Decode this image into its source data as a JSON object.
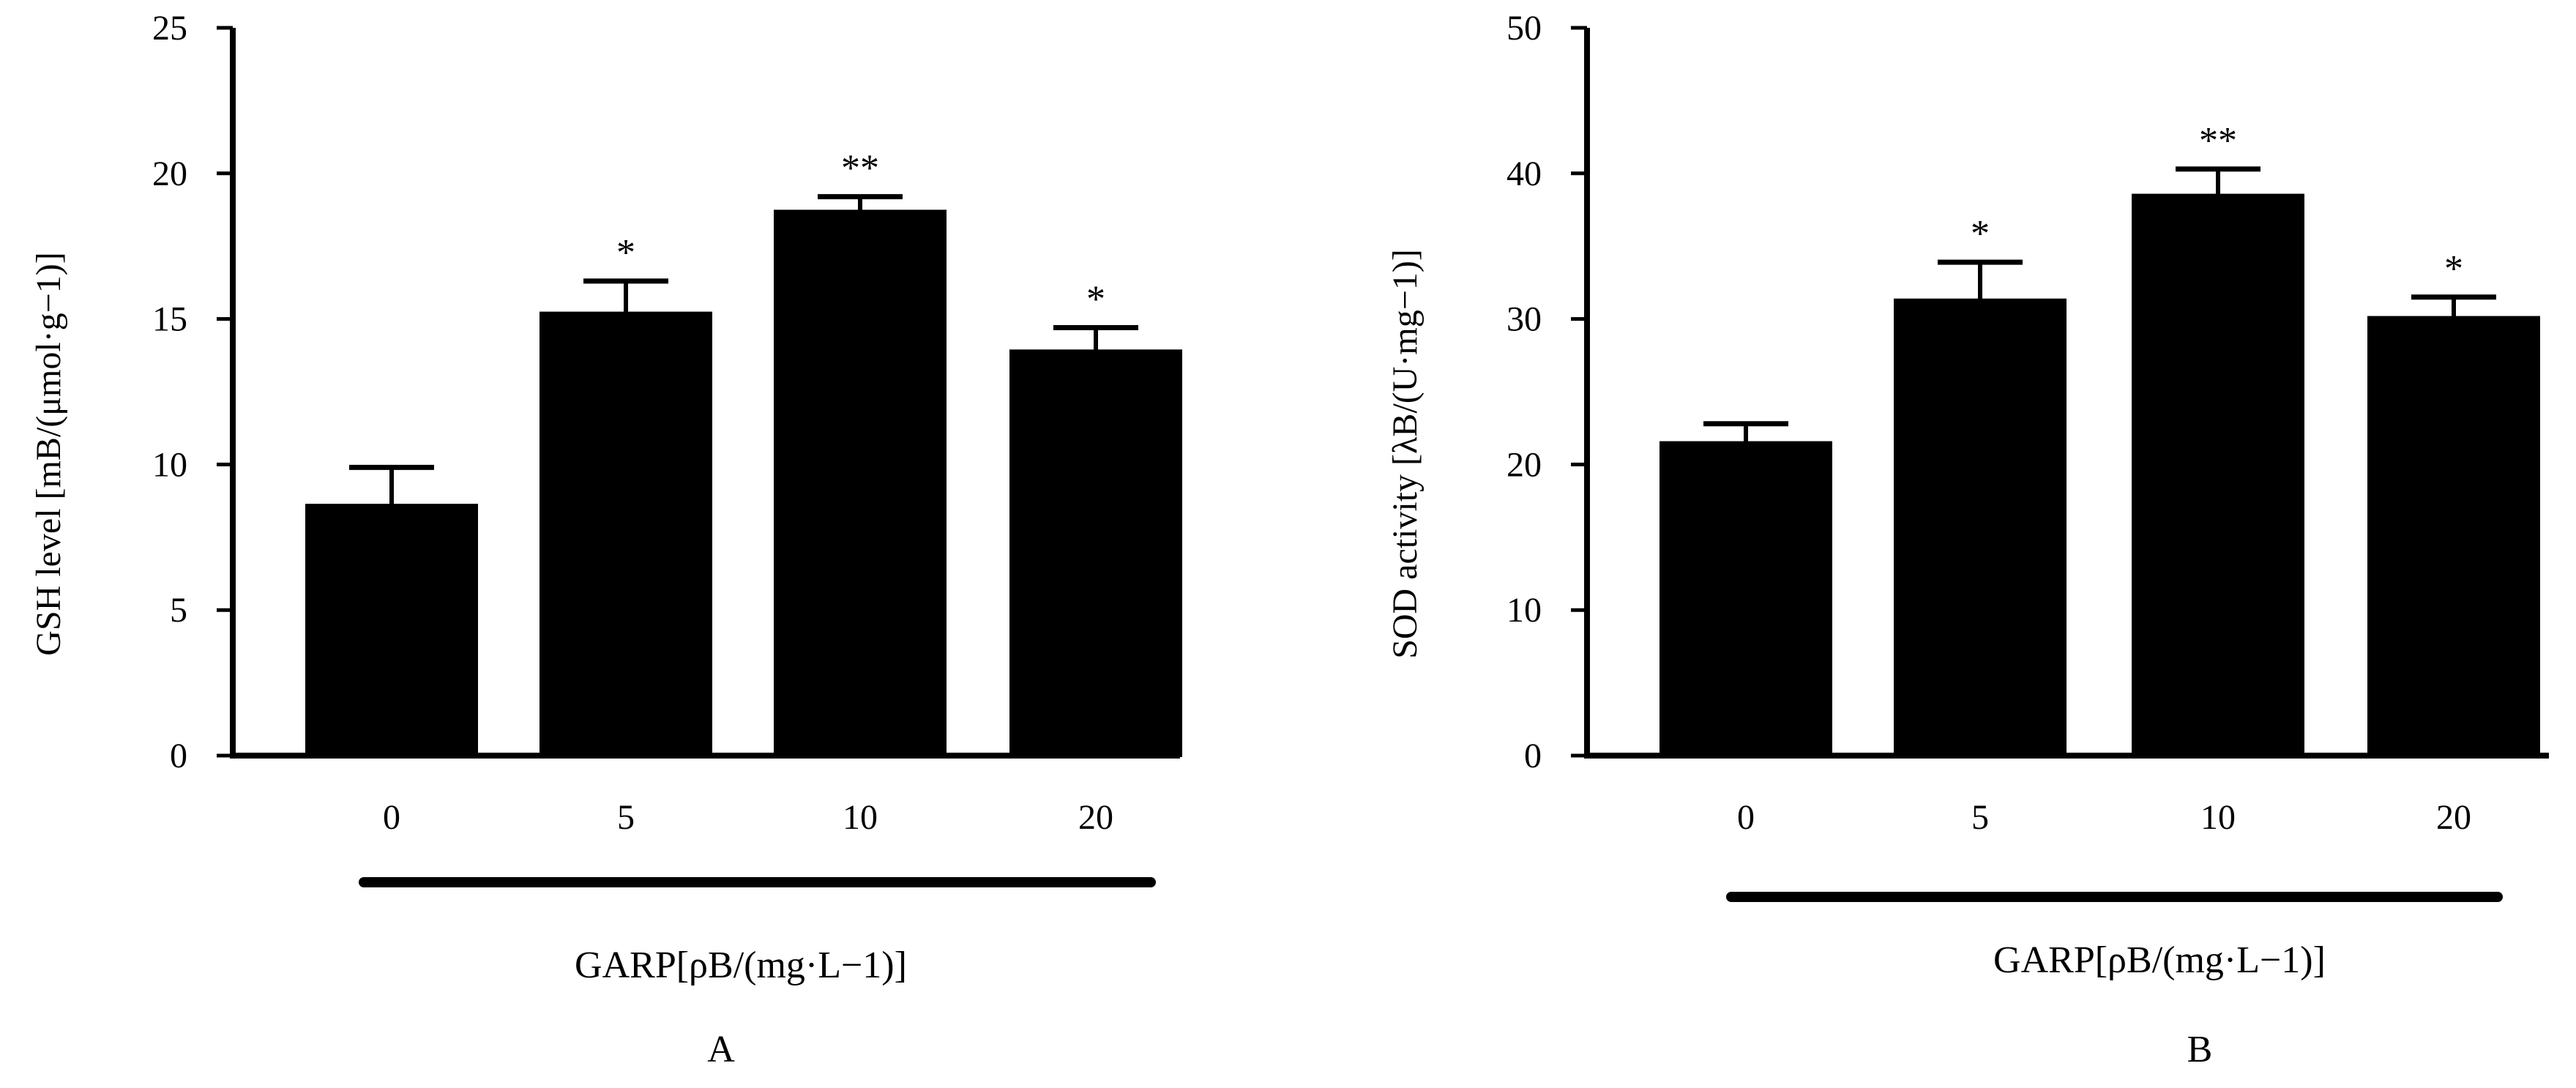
{
  "chart_data": [
    {
      "type": "bar",
      "panel_label": "A",
      "categories": [
        "0",
        "5",
        "10",
        "20"
      ],
      "values": [
        8.6,
        15.2,
        18.7,
        13.9
      ],
      "errors": [
        1.3,
        1.1,
        0.5,
        0.8
      ],
      "significance": [
        "",
        "*",
        "**",
        "*"
      ],
      "ylabel": "GSH level [mB/(μmol·g−1)]",
      "xlabel": "GARP[ρB/(mg·L−1)]",
      "yticks": [
        "0",
        "5",
        "10",
        "15",
        "20",
        "25"
      ],
      "ylim": [
        0,
        25
      ],
      "grid": false,
      "legend": "none",
      "colors": {
        "bar": "#000000"
      }
    },
    {
      "type": "bar",
      "panel_label": "B",
      "categories": [
        "0",
        "5",
        "10",
        "20"
      ],
      "values": [
        21.5,
        31.3,
        38.5,
        30.1
      ],
      "errors": [
        1.3,
        2.6,
        1.8,
        1.4
      ],
      "significance": [
        "",
        "*",
        "**",
        "*"
      ],
      "ylabel": "SOD activity [λB/(U·mg−1)]",
      "xlabel": "GARP[ρB/(mg·L−1)]",
      "yticks": [
        "0",
        "10",
        "20",
        "30",
        "40",
        "50"
      ],
      "ylim": [
        0,
        50
      ],
      "grid": false,
      "legend": "none",
      "colors": {
        "bar": "#000000"
      }
    }
  ]
}
